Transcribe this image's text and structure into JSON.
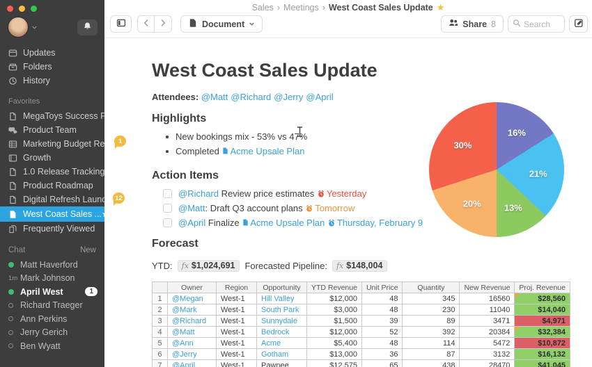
{
  "sidebar": {
    "nav": [
      {
        "icon": "updates-icon",
        "label": "Updates"
      },
      {
        "icon": "folders-icon",
        "label": "Folders"
      },
      {
        "icon": "history-icon",
        "label": "History"
      }
    ],
    "favorites_header": "Favorites",
    "favorites": [
      {
        "icon": "document-icon",
        "label": "MegaToys Success Plan"
      },
      {
        "icon": "chat-icon",
        "label": "Product Team"
      },
      {
        "icon": "spreadsheet-icon",
        "label": "Marketing Budget Re..."
      },
      {
        "icon": "slides-icon",
        "label": "Growth"
      },
      {
        "icon": "document-icon",
        "label": "1.0 Release Tracking"
      },
      {
        "icon": "document-icon",
        "label": "Product Roadmap"
      },
      {
        "icon": "document-icon",
        "label": "Digital Refresh Launc..."
      },
      {
        "icon": "document-filled-icon",
        "label": "West Coast Sales ...",
        "selected": true,
        "starred": true
      },
      {
        "icon": "documents-icon",
        "label": "Frequently Viewed"
      }
    ],
    "chat_header": "Chat",
    "chat_new": "New",
    "chat": [
      {
        "name": "Matt Haverford",
        "presence": "online"
      },
      {
        "name": "Mark Johnson",
        "time": "1m"
      },
      {
        "name": "April West",
        "presence": "online",
        "unread": "1"
      },
      {
        "name": "Richard Traeger",
        "presence": "offline"
      },
      {
        "name": "Ann Perkins",
        "presence": "offline"
      },
      {
        "name": "Jerry Gerich",
        "presence": "offline"
      },
      {
        "name": "Ben Wyatt",
        "presence": "offline"
      }
    ]
  },
  "topbar": {
    "breadcrumb": [
      "Sales",
      "Meetings"
    ],
    "breadcrumb_current": "West Coast Sales Update",
    "breadcrumb_separator": "›",
    "document_button": "Document",
    "share_label": "Share",
    "share_count": "8",
    "search_placeholder": "Search"
  },
  "doc": {
    "title": "West Coast Sales Update",
    "attendees_label": "Attendees:",
    "attendees": [
      "@Matt",
      "@Richard",
      "@Jerry",
      "@April"
    ],
    "badge_highlights": "1",
    "badge_actions": "12",
    "highlights_heading": "Highlights",
    "highlight_bullets": [
      {
        "segments": [
          {
            "t": "New bookings mix - 53% vs 47%",
            "s": "text"
          }
        ]
      },
      {
        "segments": [
          {
            "t": "Completed ",
            "s": "text"
          },
          {
            "icon": "doc",
            "s": "link"
          },
          {
            "t": "Acme Upsale Plan",
            "s": "link"
          }
        ]
      }
    ],
    "actions_heading": "Action Items",
    "action_items": [
      {
        "segments": [
          {
            "t": "@Richard",
            "s": "link"
          },
          {
            "t": " Review price estimates ",
            "s": "text"
          },
          {
            "icon": "alarm",
            "s": "red"
          },
          {
            "t": "Yesterday",
            "s": "red"
          }
        ]
      },
      {
        "segments": [
          {
            "t": "@Matt",
            "s": "link"
          },
          {
            "t": ": Draft Q3 account plans ",
            "s": "text"
          },
          {
            "icon": "alarm",
            "s": "orange"
          },
          {
            "t": "Tomorrow",
            "s": "orange"
          }
        ]
      },
      {
        "segments": [
          {
            "t": "@April",
            "s": "link"
          },
          {
            "t": " Finalize ",
            "s": "text"
          },
          {
            "icon": "doc",
            "s": "link"
          },
          {
            "t": "Acme Upsale Plan",
            "s": "link"
          },
          {
            "t": " ",
            "s": "text"
          },
          {
            "icon": "alarm",
            "s": "link"
          },
          {
            "t": "Thursday, February 9",
            "s": "link"
          }
        ]
      }
    ],
    "forecast_heading": "Forecast",
    "ytd_label": "YTD:",
    "ytd_value": "$1,024,691",
    "pipeline_label": "Forecasted Pipeline:",
    "pipeline_value": "$148,004",
    "formula_icon_text": "fx"
  },
  "table": {
    "headers": [
      "",
      "Owner",
      "Region",
      "Opportunity",
      "YTD Revenue",
      "Unit Price",
      "Quantity",
      "New Revenue",
      "Proj. Revenue"
    ],
    "rows": [
      {
        "num": "1",
        "owner": "@Megan",
        "region": "West-1",
        "opportunity": "Hill Valley",
        "opp_link": true,
        "ytd": "$12,000",
        "unit_price": "48",
        "quantity": "345",
        "new_revenue": "16560",
        "proj_revenue": "$28,560",
        "proj_state": "green",
        "flag": true
      },
      {
        "num": "2",
        "owner": "@Mark",
        "region": "West-1",
        "opportunity": "South Park",
        "opp_link": true,
        "ytd": "$3,000",
        "unit_price": "48",
        "quantity": "230",
        "new_revenue": "11040",
        "proj_revenue": "$14,040",
        "proj_state": "green",
        "flag": false
      },
      {
        "num": "3",
        "owner": "@Richard",
        "region": "West-1",
        "opportunity": "Sunnydale",
        "opp_link": true,
        "ytd": "$1,500",
        "unit_price": "39",
        "quantity": "89",
        "new_revenue": "3471",
        "proj_revenue": "$4,971",
        "proj_state": "red",
        "flag": false
      },
      {
        "num": "4",
        "owner": "@Matt",
        "region": "West-1",
        "opportunity": "Bedrock",
        "opp_link": true,
        "ytd": "$12,000",
        "unit_price": "52",
        "quantity": "392",
        "new_revenue": "20384",
        "proj_revenue": "$32,384",
        "proj_state": "green",
        "flag": true
      },
      {
        "num": "5",
        "owner": "@Ann",
        "region": "West-1",
        "opportunity": "Acme",
        "opp_link": true,
        "ytd": "$5,400",
        "unit_price": "48",
        "quantity": "114",
        "new_revenue": "5472",
        "proj_revenue": "$10,872",
        "proj_state": "red",
        "flag": false
      },
      {
        "num": "6",
        "owner": "@Jerry",
        "region": "West-1",
        "opportunity": "Gotham",
        "opp_link": true,
        "ytd": "$13,000",
        "unit_price": "36",
        "quantity": "87",
        "new_revenue": "3132",
        "proj_revenue": "$16,132",
        "proj_state": "green",
        "flag": false
      },
      {
        "num": "7",
        "owner": "@April",
        "region": "West-1",
        "opportunity": "Pawnee",
        "opp_link": false,
        "ytd": "$12,575",
        "unit_price": "65",
        "quantity": "438",
        "new_revenue": "28470",
        "proj_revenue": "$41,045",
        "proj_state": "green",
        "flag": false
      }
    ]
  },
  "chart_data": {
    "type": "pie",
    "labels": [
      "16%",
      "21%",
      "13%",
      "20%",
      "30%"
    ],
    "values": [
      16,
      21,
      13,
      20,
      30
    ],
    "colors": [
      "#7478c4",
      "#4ac1f0",
      "#8cc95f",
      "#f9b269",
      "#f4614b"
    ],
    "start": "top",
    "direction": "clockwise",
    "legend": false,
    "title": ""
  },
  "colors": {
    "accent_blue": "#2ba4e0",
    "link_blue": "#3aa0d8",
    "overdue_red": "#e8503f",
    "due_orange": "#f0923a",
    "badge_yellow": "#f2bb40",
    "green_cell": "#8fd168",
    "red_cell": "#dc5f66",
    "online_green": "#3fbb77"
  }
}
